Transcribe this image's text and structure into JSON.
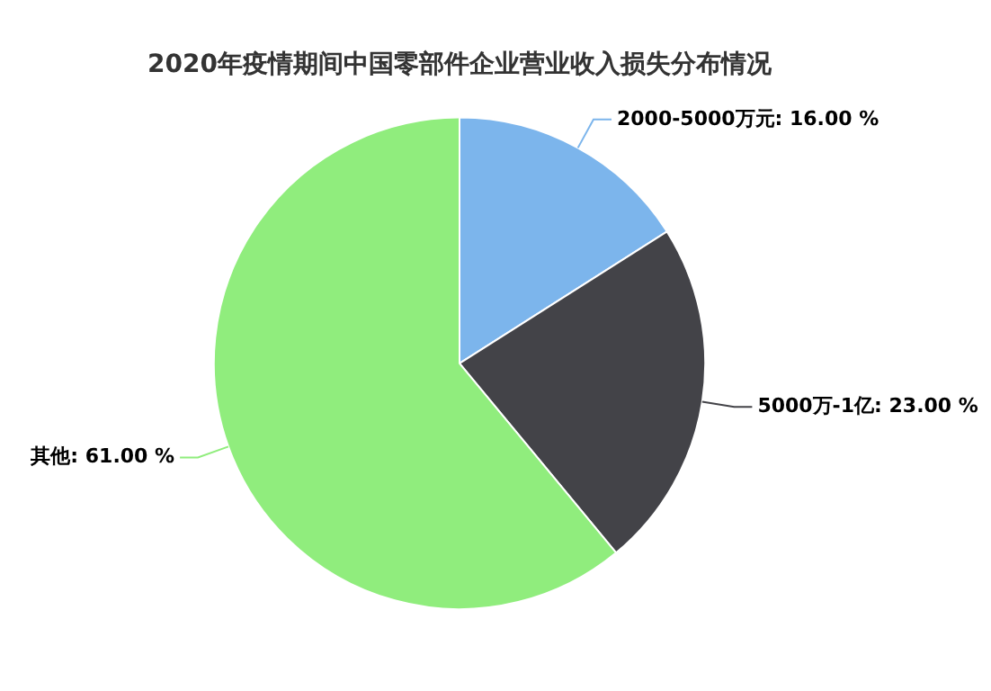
{
  "chart_data": {
    "type": "pie",
    "title": "2020年疫情期间中国零部件企业营业收入损失分布情况",
    "categories": [
      "2000-5000万元",
      "5000万-1亿",
      "其他"
    ],
    "values": [
      16,
      23,
      61
    ],
    "value_labels": [
      "16.00 %",
      "23.00 %",
      "61.00 %"
    ],
    "colors": [
      "#7cb5ec",
      "#434348",
      "#90ed7d"
    ],
    "legend": false
  }
}
